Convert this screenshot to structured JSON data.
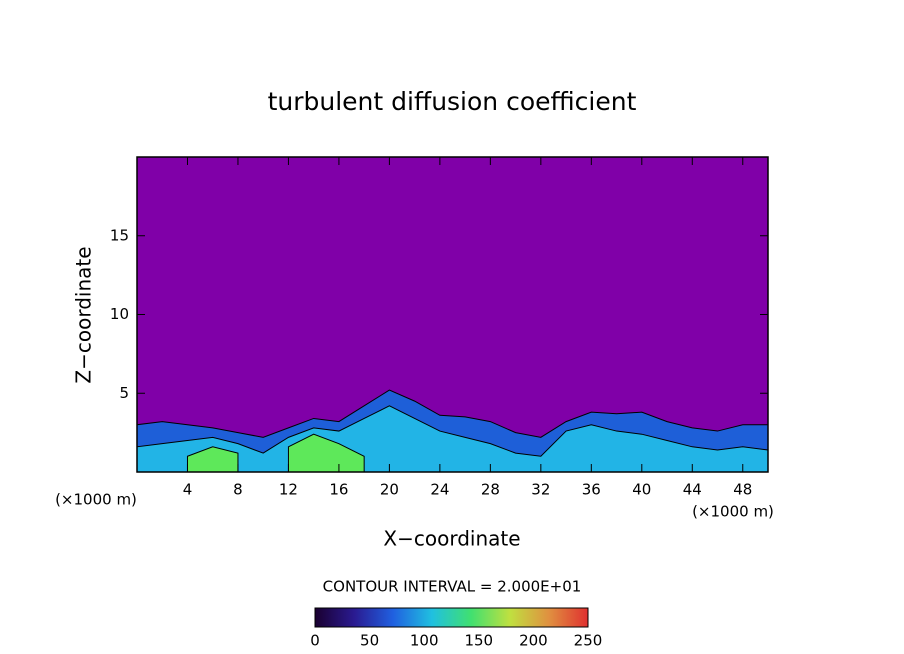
{
  "chart_data": {
    "type": "contour",
    "title": "turbulent diffusion coefficient",
    "x_label": "X−coordinate",
    "y_label": "Z−coordinate",
    "x_unit": "(×1000 m)",
    "y_unit": "(×1000 m)",
    "xlim": [
      0,
      50
    ],
    "ylim": [
      0,
      20
    ],
    "xticks": [
      4,
      8,
      12,
      16,
      20,
      24,
      28,
      32,
      36,
      40,
      44,
      48
    ],
    "yticks": [
      5,
      10,
      15
    ],
    "background": "#8000a8",
    "x": [
      0,
      2,
      4,
      6,
      8,
      10,
      12,
      14,
      16,
      18,
      20,
      22,
      24,
      26,
      28,
      30,
      32,
      34,
      36,
      38,
      40,
      42,
      44,
      46,
      48,
      50
    ],
    "series": [
      {
        "color": "#1e5fd8",
        "values": [
          3.0,
          3.2,
          3.0,
          2.8,
          2.5,
          2.2,
          2.8,
          3.4,
          3.2,
          4.2,
          5.2,
          4.5,
          3.6,
          3.5,
          3.2,
          2.5,
          2.2,
          3.2,
          3.8,
          3.7,
          3.8,
          3.2,
          2.8,
          2.6,
          3.0,
          3.0
        ]
      },
      {
        "color": "#22b4e6",
        "values": [
          1.6,
          1.8,
          2.0,
          2.2,
          1.8,
          1.2,
          2.2,
          2.8,
          2.6,
          3.4,
          4.2,
          3.4,
          2.6,
          2.2,
          1.8,
          1.2,
          1.0,
          2.6,
          3.0,
          2.6,
          2.4,
          2.0,
          1.6,
          1.4,
          1.6,
          1.4
        ]
      },
      {
        "color": "#5ee85a",
        "values": [
          null,
          null,
          1.0,
          1.6,
          1.2,
          null,
          1.6,
          2.4,
          1.8,
          1.0,
          null,
          null,
          null,
          null,
          null,
          null,
          null,
          null,
          null,
          null,
          null,
          null,
          null,
          null,
          null,
          null
        ]
      }
    ],
    "contour_note": "CONTOUR INTERVAL = 2.000E+01",
    "zlim": [
      0,
      250
    ],
    "zticks": [
      0,
      50,
      100,
      150,
      200,
      250
    ],
    "colormap": [
      "#1a0030",
      "#2a1a90",
      "#2060e0",
      "#20c0e0",
      "#40e070",
      "#c0e040",
      "#e09040",
      "#e03030"
    ]
  }
}
